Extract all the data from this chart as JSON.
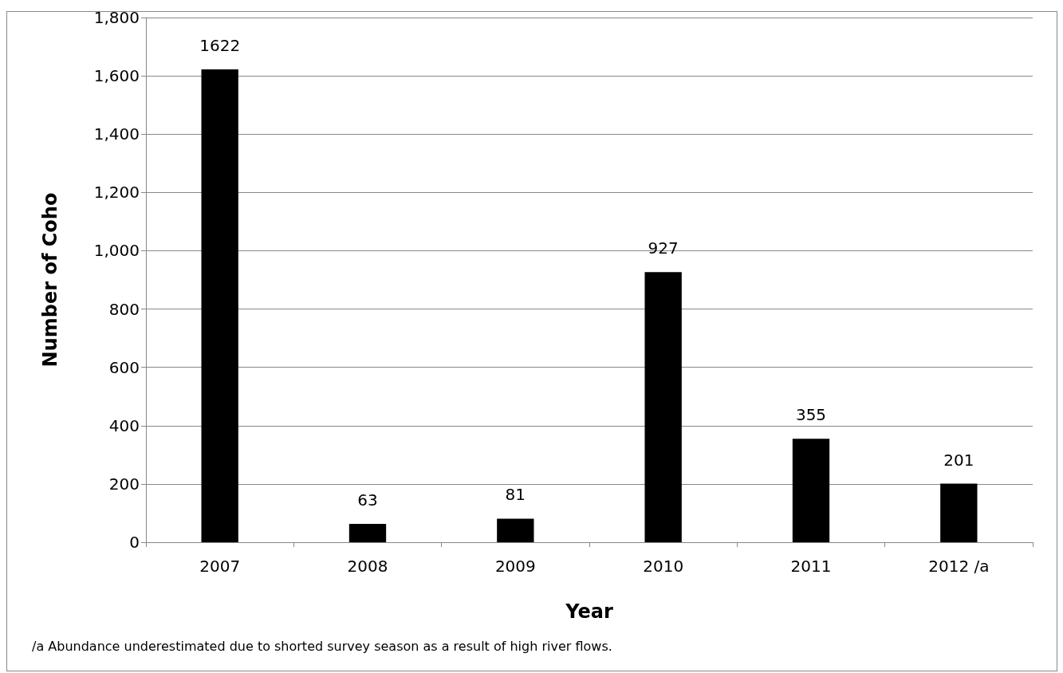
{
  "chart_data": {
    "type": "bar",
    "xlabel": "Year",
    "ylabel": "Number of Coho",
    "categories": [
      "2007",
      "2008",
      "2009",
      "2010",
      "2011",
      "2012 /a"
    ],
    "values": [
      1622,
      63,
      81,
      927,
      355,
      201
    ],
    "color": "#000000",
    "ylim": [
      0,
      1800
    ],
    "yticks": [
      0,
      200,
      400,
      600,
      800,
      {
        "value": 1000,
        "label": "1,000"
      },
      {
        "value": 1200,
        "label": "1,200"
      },
      {
        "value": 1400,
        "label": "1,400"
      },
      {
        "value": 1600,
        "label": "1,600"
      },
      {
        "value": 1800,
        "label": "1,800"
      }
    ],
    "grid": "y",
    "data_labels": true,
    "annotations": [
      "/a  Abundance underestimated due to shorted survey season as a result of  high river flows."
    ]
  }
}
